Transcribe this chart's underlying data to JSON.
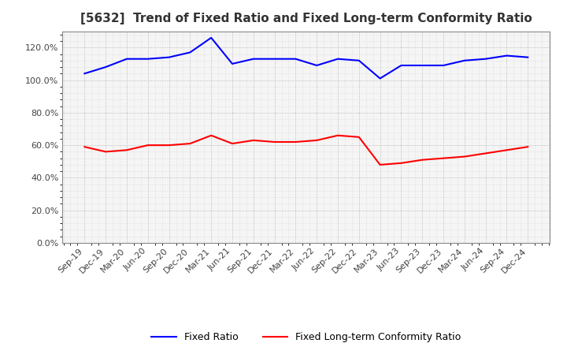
{
  "title": "[5632]  Trend of Fixed Ratio and Fixed Long-term Conformity Ratio",
  "x_labels": [
    "Sep-19",
    "Dec-19",
    "Mar-20",
    "Jun-20",
    "Sep-20",
    "Dec-20",
    "Mar-21",
    "Jun-21",
    "Sep-21",
    "Dec-21",
    "Mar-22",
    "Jun-22",
    "Sep-22",
    "Dec-22",
    "Mar-23",
    "Jun-23",
    "Sep-23",
    "Dec-23",
    "Mar-24",
    "Jun-24",
    "Sep-24",
    "Dec-24"
  ],
  "fixed_ratio": [
    104,
    108,
    113,
    113,
    114,
    117,
    126,
    110,
    113,
    113,
    113,
    109,
    113,
    112,
    101,
    109,
    109,
    109,
    112,
    113,
    115,
    114
  ],
  "fixed_lt_ratio": [
    59,
    56,
    57,
    60,
    60,
    61,
    66,
    61,
    63,
    62,
    62,
    63,
    66,
    65,
    48,
    49,
    51,
    52,
    53,
    55,
    57,
    59
  ],
  "ylim": [
    0,
    130
  ],
  "yticks": [
    0,
    20,
    40,
    60,
    80,
    100,
    120
  ],
  "fixed_ratio_color": "#0000FF",
  "fixed_lt_ratio_color": "#FF0000",
  "grid_color": "#AAAAAA",
  "background_color": "#FFFFFF",
  "plot_bg_color": "#FFFFFF",
  "legend_fixed_ratio": "Fixed Ratio",
  "legend_fixed_lt_ratio": "Fixed Long-term Conformity Ratio"
}
